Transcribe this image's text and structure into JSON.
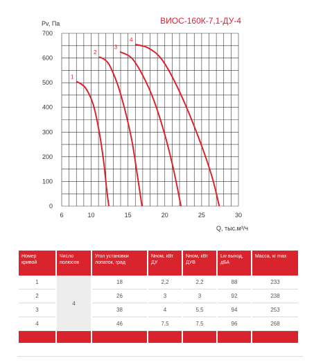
{
  "chart_data": {
    "type": "line",
    "title": "ВИОС-160К-7,1-ДУ-4",
    "ylabel": "Pv, Па",
    "xlabel": "Q, тыс.м³/ч",
    "xlim": [
      6,
      30
    ],
    "ylim": [
      0,
      700
    ],
    "xticks": [
      6,
      10,
      15,
      20,
      25,
      30
    ],
    "yticks": [
      0,
      100,
      200,
      300,
      400,
      500,
      600,
      700
    ],
    "grid": true,
    "series": [
      {
        "name": "1",
        "x": [
          8.0,
          9.2,
          10.3,
          11.1,
          11.7,
          12.1,
          12.4
        ],
        "y": [
          505,
          480,
          410,
          300,
          180,
          70,
          0
        ]
      },
      {
        "name": "2",
        "x": [
          11.1,
          12.3,
          13.5,
          14.5,
          15.5,
          16.2,
          16.9
        ],
        "y": [
          605,
          580,
          500,
          400,
          270,
          140,
          0
        ]
      },
      {
        "name": "3",
        "x": [
          13.9,
          15.5,
          17.0,
          18.5,
          19.9,
          21.1,
          22.2
        ],
        "y": [
          625,
          600,
          530,
          430,
          300,
          160,
          0
        ]
      },
      {
        "name": "4",
        "x": [
          16.0,
          17.8,
          19.7,
          21.9,
          24.3,
          26.3,
          27.4
        ],
        "y": [
          655,
          640,
          590,
          470,
          300,
          130,
          0
        ]
      }
    ]
  },
  "colors": {
    "accent": "#d9232d",
    "grid": "#333333"
  },
  "table": {
    "headers": [
      "Номер кривой",
      "Число полюсов",
      "Угол установки лопаток, град",
      "Nном, кВт ДУ",
      "Nном, кВт ДУВ",
      "Lw выход, дБА",
      "Масса, кг max"
    ],
    "poles": "4",
    "rows": [
      {
        "curve": "1",
        "angle": "18",
        "n_du": "2,2",
        "n_duv": "2,2",
        "lw": "88",
        "mass": "233"
      },
      {
        "curve": "2",
        "angle": "26",
        "n_du": "3",
        "n_duv": "3",
        "lw": "92",
        "mass": "238"
      },
      {
        "curve": "3",
        "angle": "38",
        "n_du": "4",
        "n_duv": "5,5",
        "lw": "94",
        "mass": "253"
      },
      {
        "curve": "4",
        "angle": "46",
        "n_du": "7,5",
        "n_duv": "7,5",
        "lw": "96",
        "mass": "268"
      }
    ]
  }
}
